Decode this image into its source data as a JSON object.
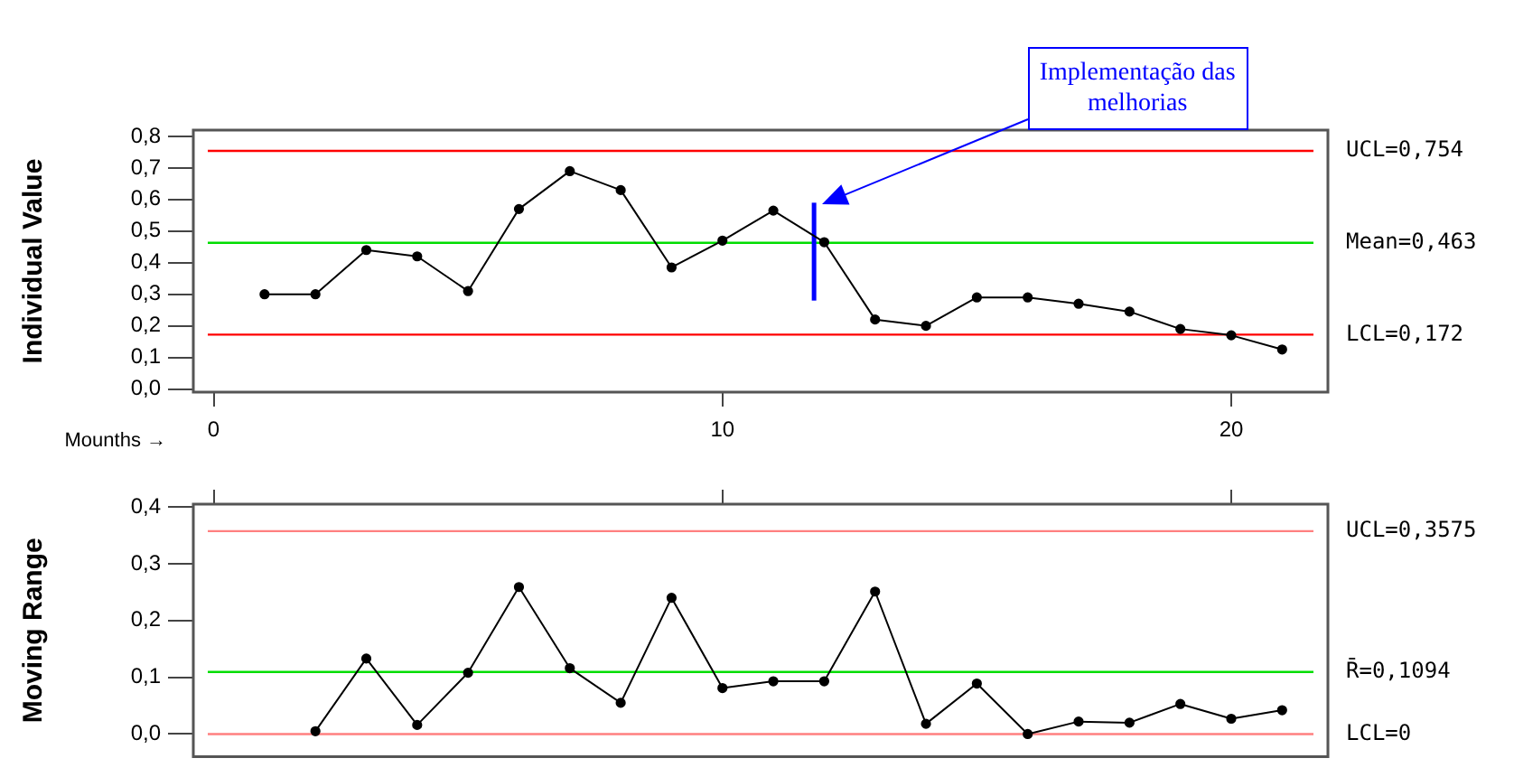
{
  "chart_data": [
    {
      "type": "line",
      "ylabel": "Individual Value",
      "xlabel": "Mounths →",
      "marker": "circle",
      "xlim": [
        -0.4,
        21.9
      ],
      "xticks": [
        0,
        10,
        20
      ],
      "ylim": [
        -0.01,
        0.82
      ],
      "yticks": [
        {
          "value": 0,
          "label": "0,0"
        },
        {
          "value": 0.1,
          "label": "0,1"
        },
        {
          "value": 0.2,
          "label": "0,2"
        },
        {
          "value": 0.3,
          "label": "0,3"
        },
        {
          "value": 0.4,
          "label": "0,4"
        },
        {
          "value": 0.5,
          "label": "0,5"
        },
        {
          "value": 0.6,
          "label": "0,6"
        },
        {
          "value": 0.7,
          "label": "0,7"
        },
        {
          "value": 0.8,
          "label": "0,8"
        }
      ],
      "series": [
        {
          "color": "#000000",
          "x": [
            1,
            2,
            3,
            4,
            5,
            6,
            7,
            8,
            9,
            10,
            11,
            12,
            13,
            14,
            15,
            16,
            17,
            18,
            19,
            20,
            21
          ],
          "values": [
            0.3,
            0.3,
            0.44,
            0.42,
            0.31,
            0.57,
            0.69,
            0.63,
            0.385,
            0.47,
            0.565,
            0.465,
            0.22,
            0.2,
            0.29,
            0.29,
            0.27,
            0.245,
            0.19,
            0.17,
            0.125
          ]
        },
        {
          "color": "#0000ff",
          "marker": "none",
          "x": [
            11.8,
            11.8
          ],
          "values": [
            0.28,
            0.59
          ]
        }
      ],
      "ref_lines": [
        {
          "axis": "y",
          "value": 0.754,
          "label": "UCL=0,754",
          "color": "#ff0000"
        },
        {
          "axis": "y",
          "value": 0.463,
          "label": "Mean=0,463",
          "color": "#00dd00"
        },
        {
          "axis": "y",
          "value": 0.172,
          "label": "LCL=0,172",
          "color": "#ff0000"
        }
      ],
      "annotations": [
        "Implementação das melhorias"
      ]
    },
    {
      "type": "line",
      "ylabel": "Moving Range",
      "marker": "circle",
      "tick_labels": "y",
      "xlim": [
        -0.4,
        21.9
      ],
      "xticks": [
        0,
        10,
        20
      ],
      "ylim": [
        -0.04,
        0.405
      ],
      "yticks": [
        {
          "value": 0,
          "label": "0,0"
        },
        {
          "value": 0.1,
          "label": "0,1"
        },
        {
          "value": 0.2,
          "label": "0,2"
        },
        {
          "value": 0.3,
          "label": "0,3"
        },
        {
          "value": 0.4,
          "label": "0,4"
        }
      ],
      "series": [
        {
          "color": "#000000",
          "x": [
            2,
            3,
            4,
            5,
            6,
            7,
            8,
            9,
            10,
            11,
            12,
            13,
            14,
            15,
            16,
            17,
            18,
            19,
            20,
            21
          ],
          "values": [
            0.005,
            0.133,
            0.016,
            0.108,
            0.259,
            0.116,
            0.055,
            0.24,
            0.081,
            0.093,
            0.093,
            0.251,
            0.018,
            0.089,
            0.0,
            0.022,
            0.02,
            0.053,
            0.027,
            0.042
          ]
        }
      ],
      "ref_lines": [
        {
          "axis": "y",
          "value": 0.3575,
          "label": "UCL=0,3575",
          "color": "#ff8080"
        },
        {
          "axis": "y",
          "value": 0.1094,
          "label": "R̄=0,1094",
          "color": "#00dd00"
        },
        {
          "axis": "y",
          "value": 0,
          "label": "LCL=0",
          "color": "#ff8080"
        }
      ]
    }
  ]
}
